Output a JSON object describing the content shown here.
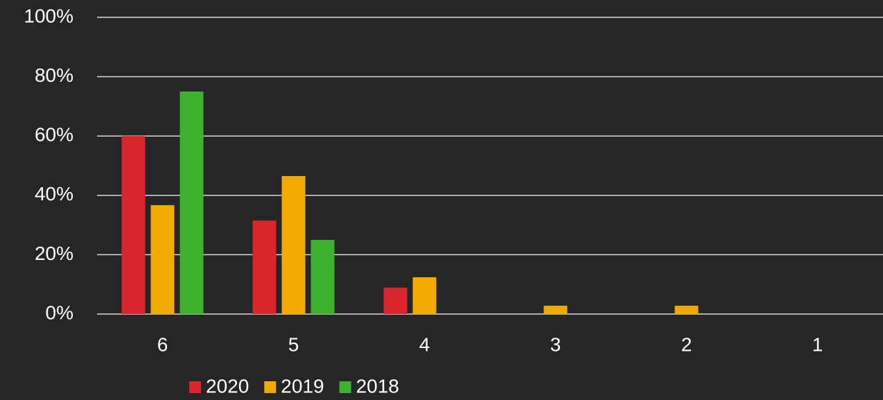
{
  "chart_data": {
    "type": "bar",
    "categories": [
      "6",
      "5",
      "4",
      "3",
      "2",
      "1"
    ],
    "series": [
      {
        "name": "2020",
        "color": "#d9262e",
        "values": [
          60,
          31.5,
          8.9,
          0,
          0,
          0
        ]
      },
      {
        "name": "2019",
        "color": "#f2a900",
        "values": [
          36.7,
          46.5,
          12.4,
          2.8,
          2.8,
          0
        ]
      },
      {
        "name": "2018",
        "color": "#3db22f",
        "values": [
          75,
          25,
          0,
          0,
          0,
          0
        ]
      }
    ],
    "ylim": [
      0,
      100
    ],
    "yticks": [
      {
        "value": 0,
        "label": "0%"
      },
      {
        "value": 20,
        "label": "20%"
      },
      {
        "value": 40,
        "label": "40%"
      },
      {
        "value": 60,
        "label": "60%"
      },
      {
        "value": 80,
        "label": "80%"
      },
      {
        "value": 100,
        "label": "100%"
      }
    ],
    "grid": true
  }
}
